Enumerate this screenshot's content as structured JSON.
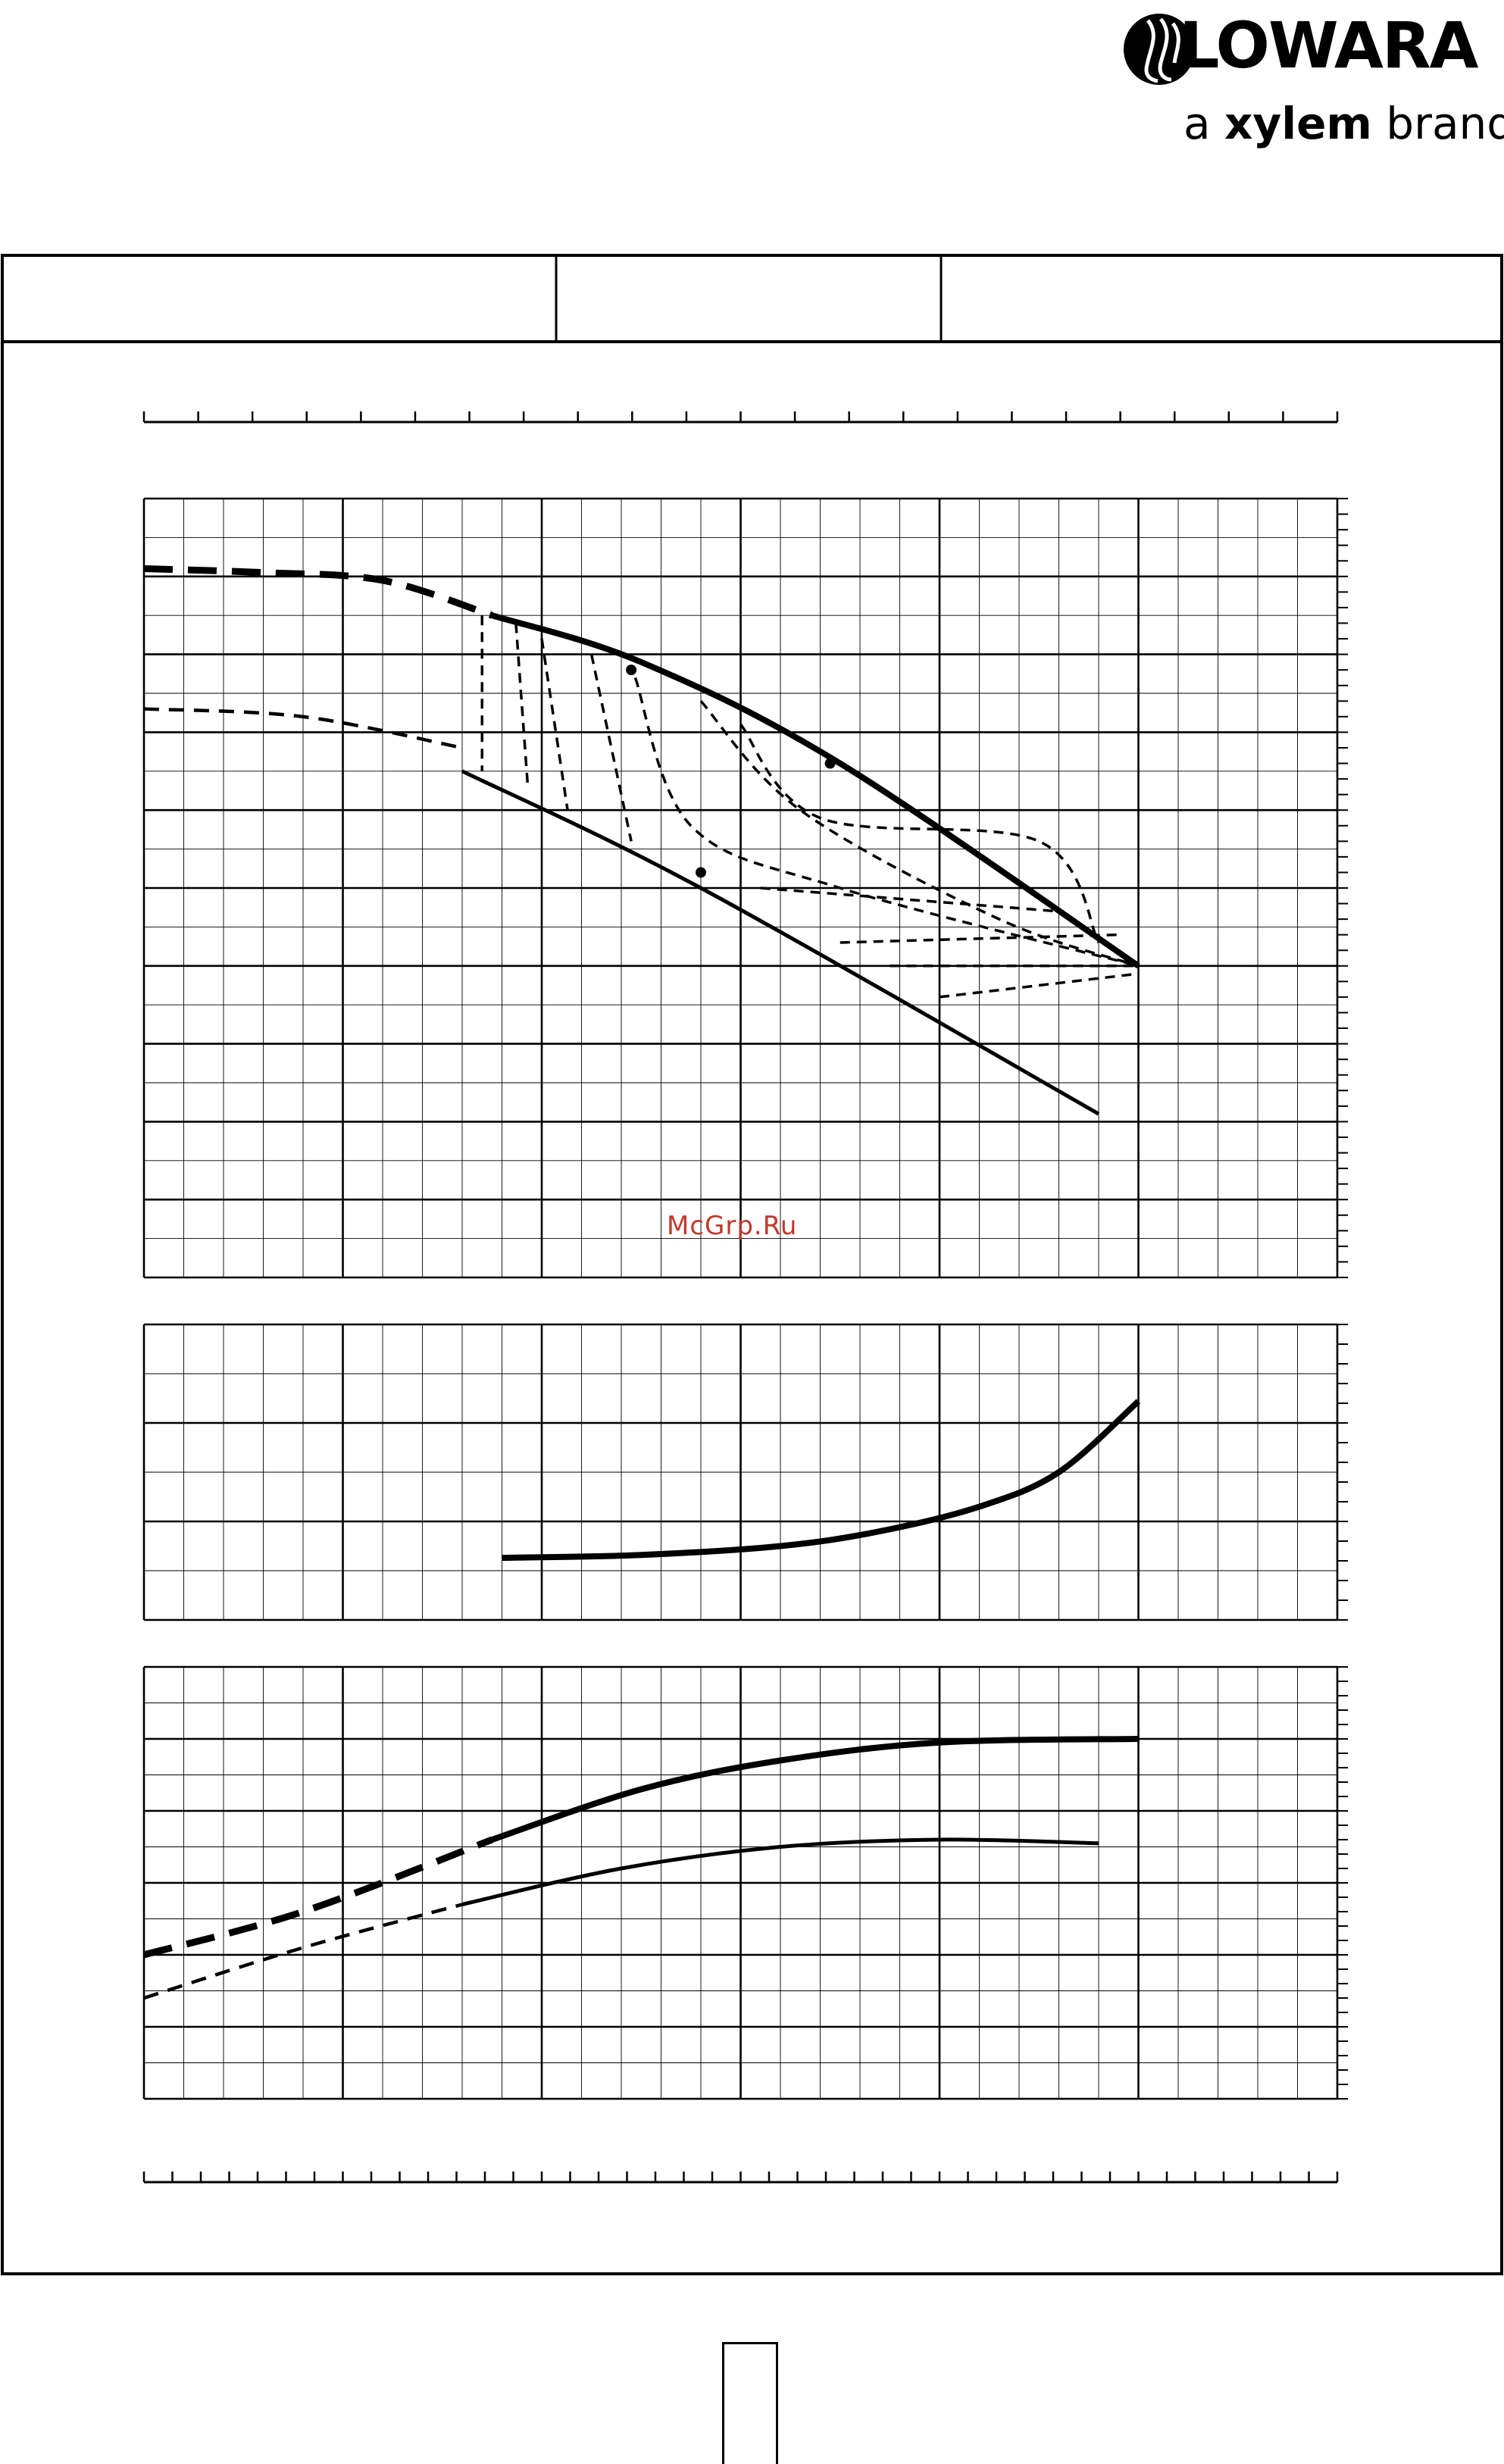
{
  "brand": {
    "name": "LOWARA",
    "tagline_prefix": "a ",
    "tagline_bold": "xylem",
    "tagline_suffix": " brand"
  },
  "watermark": "McGrp.Ru",
  "colors": {
    "line": "#000000",
    "watermark": "#c0392b",
    "background": "#ffffff"
  },
  "chart_data": [
    {
      "type": "line",
      "panel": "head",
      "title": "",
      "xlabel": "",
      "ylabel": "",
      "xlim": [
        0,
        6
      ],
      "ylim": [
        0,
        10
      ],
      "grid": true,
      "series": [
        {
          "style": "thick-dashed",
          "x": [
            0,
            0.6,
            1.2,
            1.75
          ],
          "y": [
            9.1,
            9.05,
            8.95,
            8.5
          ]
        },
        {
          "style": "thick-solid",
          "x": [
            1.75,
            2.5,
            3.5,
            5.0
          ],
          "y": [
            8.5,
            7.9,
            6.6,
            4.0
          ]
        },
        {
          "style": "thin-dashed",
          "x": [
            0,
            0.8,
            1.6
          ],
          "y": [
            7.3,
            7.2,
            6.8
          ]
        },
        {
          "style": "thin-solid",
          "x": [
            1.6,
            2.8,
            4.8
          ],
          "y": [
            6.5,
            5.0,
            2.1
          ]
        },
        {
          "style": "thin-dashed-isolines",
          "segments": [
            {
              "x": [
                1.7,
                1.7
              ],
              "y": [
                8.5,
                6.5
              ]
            },
            {
              "x": [
                1.87,
                1.93
              ],
              "y": [
                8.4,
                6.3
              ]
            },
            {
              "x": [
                2.0,
                2.13
              ],
              "y": [
                8.2,
                6.0
              ]
            },
            {
              "x": [
                2.25,
                2.45
              ],
              "y": [
                8.0,
                5.6
              ]
            },
            {
              "x": [
                2.47,
                2.75,
                3.5,
                5.0
              ],
              "y": [
                7.7,
                5.8,
                5.0,
                4.0
              ]
            },
            {
              "x": [
                2.8,
                3.3,
                4.3,
                5.0
              ],
              "y": [
                7.4,
                6.0,
                4.6,
                4.0
              ]
            },
            {
              "x": [
                3.0,
                3.4,
                4.5,
                4.8
              ],
              "y": [
                7.1,
                5.9,
                5.6,
                4.3
              ]
            },
            {
              "x": [
                3.1,
                4.6
              ],
              "y": [
                5.0,
                4.7
              ]
            },
            {
              "x": [
                3.5,
                4.9
              ],
              "y": [
                4.3,
                4.4
              ]
            },
            {
              "x": [
                3.75,
                5.0
              ],
              "y": [
                4.0,
                4.0
              ]
            },
            {
              "x": [
                4.0,
                5.0
              ],
              "y": [
                3.6,
                3.9
              ]
            }
          ]
        }
      ],
      "markers": [
        {
          "x": 2.45,
          "y": 7.8
        },
        {
          "x": 3.45,
          "y": 6.6
        },
        {
          "x": 2.8,
          "y": 5.2
        }
      ]
    },
    {
      "type": "line",
      "panel": "npsh",
      "title": "",
      "xlabel": "",
      "ylabel": "",
      "xlim": [
        0,
        6
      ],
      "ylim": [
        0,
        3
      ],
      "grid": true,
      "series": [
        {
          "style": "thick-solid",
          "x": [
            1.8,
            2.5,
            3.2,
            3.7,
            4.2,
            4.6,
            5.0
          ],
          "y": [
            0.63,
            0.66,
            0.75,
            0.9,
            1.15,
            1.5,
            2.22
          ]
        }
      ]
    },
    {
      "type": "line",
      "panel": "power",
      "title": "",
      "xlabel": "",
      "ylabel": "",
      "xlim": [
        0,
        6
      ],
      "ylim": [
        0,
        6
      ],
      "grid": true,
      "series": [
        {
          "style": "thick-dashed",
          "x": [
            0,
            0.8,
            1.75
          ],
          "y": [
            2.0,
            2.6,
            3.6
          ]
        },
        {
          "style": "thick-solid",
          "x": [
            1.75,
            2.5,
            3.2,
            4.0,
            5.0
          ],
          "y": [
            3.6,
            4.3,
            4.7,
            4.95,
            5.0
          ]
        },
        {
          "style": "thin-dashed",
          "x": [
            0,
            0.8,
            1.6
          ],
          "y": [
            1.4,
            2.1,
            2.7
          ]
        },
        {
          "style": "thin-solid",
          "x": [
            1.6,
            2.4,
            3.2,
            4.0,
            4.8
          ],
          "y": [
            2.7,
            3.2,
            3.5,
            3.6,
            3.55
          ]
        }
      ]
    }
  ]
}
